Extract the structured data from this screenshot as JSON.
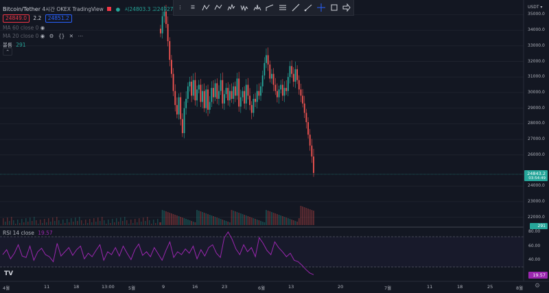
{
  "header": {
    "symbol": "Bitcoin/Tether",
    "interval": "4시간",
    "exchange": "OKEX",
    "source": "TradingView",
    "ohlc_text": "시24803.3  고24927.",
    "bid": "24849.0",
    "spread": "2.2",
    "ask": "24851.2"
  },
  "indicators": {
    "ma1": "MA 60 close 0",
    "ma2": "MA 20 close 0",
    "volume_label": "볼륨",
    "volume_value": "291"
  },
  "price_axis": {
    "currency": "USDT",
    "labels": [
      "35000.0",
      "34000.0",
      "33000.0",
      "32000.0",
      "31000.0",
      "30000.0",
      "29000.0",
      "28000.0",
      "27000.0",
      "26000.0",
      "24000.0",
      "23000.0",
      "22000.0"
    ],
    "current_price": "24843.2",
    "countdown": "03:54:49",
    "volume_tag": "291"
  },
  "rsi": {
    "label": "RSI 14 close",
    "value": "19.57",
    "axis_labels": [
      "80.00",
      "60.00",
      "40.00"
    ],
    "current_tag": "19.57"
  },
  "time_axis": {
    "labels": [
      "4월",
      "11",
      "18",
      "13:00",
      "5월",
      "9",
      "16",
      "23",
      "6월",
      "13",
      "20",
      "7월",
      "11",
      "18",
      "25",
      "8월"
    ]
  },
  "colors": {
    "background": "#131722",
    "up": "#26a69a",
    "down": "#ef5350",
    "rsi": "#9c27b0",
    "accent": "#2962ff"
  },
  "chart_data": {
    "type": "candlestick",
    "series_close": [
      33800,
      34900,
      35200,
      34400,
      33300,
      32100,
      31200,
      30100,
      29200,
      28600,
      29700,
      28300,
      27400,
      29000,
      29600,
      30400,
      30700,
      29800,
      30800,
      29500,
      30200,
      30500,
      29400,
      30100,
      29000,
      30200,
      28900,
      29400,
      30300,
      29700,
      30600,
      29600,
      30100,
      30800,
      29300,
      29900,
      30300,
      29500,
      30100,
      29600,
      30400,
      29800,
      30900,
      29100,
      29700,
      30100,
      29300,
      30500,
      29800,
      29200,
      28700,
      29600,
      29400,
      30100,
      29800,
      30400,
      31100,
      31900,
      32400,
      31800,
      30900,
      31200,
      30500,
      30100,
      29700,
      30200,
      30500,
      29800,
      30300,
      30100,
      31000,
      31700,
      31200,
      30700,
      31500,
      30800,
      30200,
      29800,
      29300,
      28700,
      28100,
      27300,
      26600,
      25900,
      24843
    ],
    "ylim": [
      21500,
      35500
    ],
    "rsi_values": [
      48,
      55,
      42,
      50,
      62,
      46,
      44,
      60,
      40,
      52,
      57,
      48,
      45,
      38,
      64,
      46,
      52,
      58,
      47,
      55,
      60,
      42,
      50,
      45,
      54,
      62,
      40,
      52,
      48,
      58,
      46,
      60,
      50,
      41,
      55,
      63,
      47,
      52,
      45,
      58,
      49,
      40,
      54,
      66,
      44,
      52,
      48,
      56,
      50,
      60,
      42,
      55,
      46,
      58,
      62,
      50,
      44,
      72,
      80,
      70,
      56,
      48,
      62,
      52,
      58,
      45,
      72,
      64,
      54,
      48,
      66,
      58,
      52,
      45,
      50,
      40,
      38,
      33,
      27,
      22,
      19.57
    ],
    "rsi_ylim": [
      15,
      85
    ]
  }
}
